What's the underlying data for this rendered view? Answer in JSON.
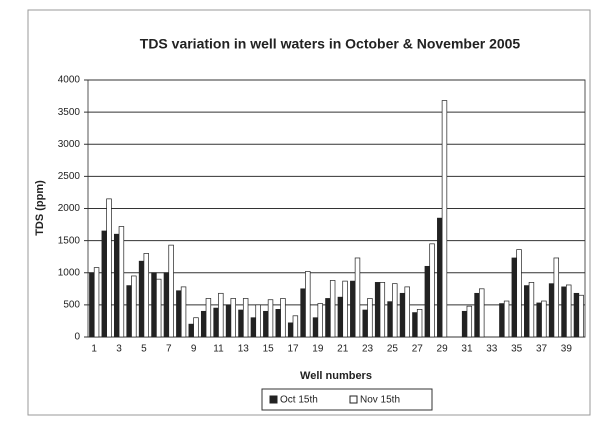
{
  "chart_data": {
    "type": "bar",
    "title": "TDS variation in well waters in October & November 2005",
    "x_label": "Well numbers",
    "y_label": "TDS (ppm)",
    "categories": [
      "1",
      null,
      "3",
      null,
      "5",
      null,
      "7",
      null,
      "9",
      null,
      "11",
      null,
      "13",
      null,
      "15",
      null,
      "17",
      null,
      "19",
      null,
      "21",
      null,
      "23",
      null,
      "25",
      null,
      "27",
      null,
      "29",
      null,
      "31",
      null,
      "33",
      null,
      "35",
      null,
      "37",
      null,
      "39",
      null
    ],
    "series": [
      {
        "name": "Oct 15th",
        "color": "#222222",
        "values": [
          1000,
          1650,
          1600,
          800,
          1180,
          1000,
          1000,
          720,
          200,
          400,
          450,
          500,
          420,
          300,
          400,
          430,
          220,
          750,
          300,
          600,
          620,
          870,
          420,
          850,
          550,
          680,
          380,
          1100,
          1850,
          null,
          400,
          680,
          null,
          520,
          1230,
          800,
          530,
          830,
          780,
          680
        ]
      },
      {
        "name": "Nov 15th",
        "color": "#ffffff",
        "values": [
          1080,
          2150,
          1720,
          950,
          1300,
          900,
          1430,
          780,
          300,
          600,
          680,
          600,
          600,
          500,
          580,
          600,
          330,
          1020,
          520,
          880,
          870,
          1230,
          600,
          850,
          830,
          780,
          430,
          1450,
          3680,
          null,
          480,
          750,
          null,
          560,
          1360,
          850,
          560,
          1230,
          810,
          650
        ]
      }
    ],
    "ylim": [
      0,
      4000
    ],
    "yticks": [
      0,
      500,
      1000,
      1500,
      2000,
      2500,
      3000,
      3500,
      4000
    ],
    "grid": true,
    "legend": "bottom"
  }
}
